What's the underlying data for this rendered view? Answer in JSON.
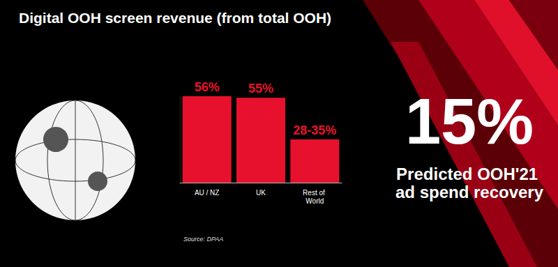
{
  "chart_data": {
    "type": "bar",
    "title": "Digital OOH screen revenue (from total OOH)",
    "categories": [
      "AU / NZ",
      "UK",
      "Rest of World"
    ],
    "values": [
      56,
      55,
      28
    ],
    "value_labels": [
      "56%",
      "55%",
      "28-35%"
    ],
    "color": "#e8112d",
    "ylim": [
      0,
      56
    ],
    "tick_labels": "x",
    "data_labels": true,
    "grid": false,
    "annotations": [
      "15%",
      "Predicted OOH'21 ad spend recovery"
    ],
    "source": "Source: DPAA"
  }
}
